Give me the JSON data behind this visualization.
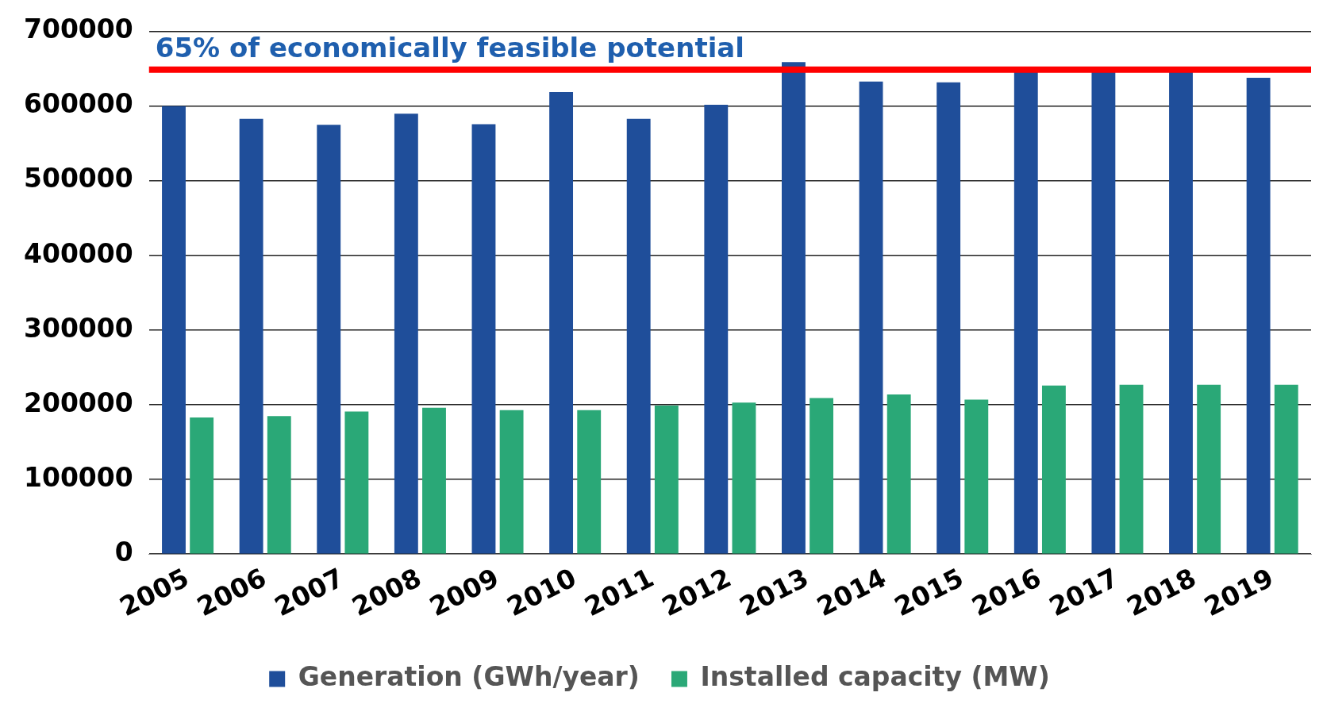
{
  "chart_data": {
    "type": "bar",
    "categories": [
      "2005",
      "2006",
      "2007",
      "2008",
      "2009",
      "2010",
      "2011",
      "2012",
      "2013",
      "2014",
      "2015",
      "2016",
      "2017",
      "2018",
      "2019"
    ],
    "series": [
      {
        "name": "Generation (GWh/year)",
        "color": "#1f4e9a",
        "values": [
          600000,
          583000,
          575000,
          590000,
          576000,
          619000,
          583000,
          602000,
          659000,
          633000,
          632000,
          647000,
          647000,
          647000,
          638000
        ]
      },
      {
        "name": "Installed capacity (MW)",
        "color": "#2aa877",
        "values": [
          183000,
          185000,
          191000,
          196000,
          193000,
          193000,
          199000,
          203000,
          209000,
          214000,
          207000,
          226000,
          227000,
          227000,
          227000
        ]
      }
    ],
    "ylim": [
      0,
      700000
    ],
    "yticks": [
      0,
      100000,
      200000,
      300000,
      400000,
      500000,
      600000,
      700000
    ],
    "grid": "y",
    "legend": "bottom",
    "ref_lines": [
      {
        "axis": "y",
        "value": 649000,
        "label": "65% of economically feasible potential",
        "color": "#ff0000"
      }
    ]
  }
}
